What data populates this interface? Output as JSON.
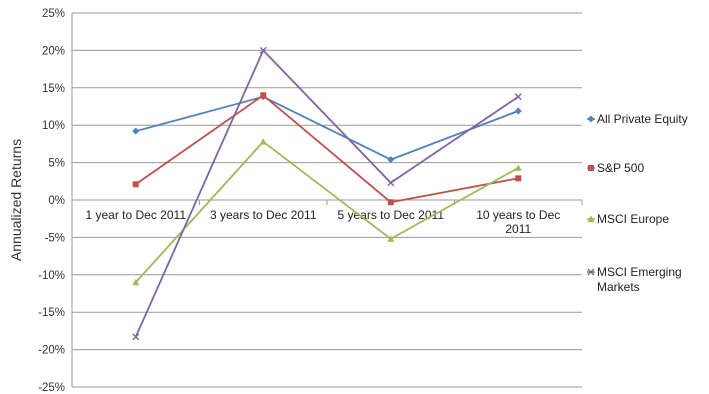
{
  "chart_data": {
    "type": "line",
    "ylabel": "Annualized Returns",
    "ylim": [
      -25,
      25
    ],
    "yticks": [
      25,
      20,
      15,
      10,
      5,
      0,
      -5,
      -10,
      -15,
      -20,
      -25
    ],
    "ytick_labels": [
      "25%",
      "20%",
      "15%",
      "10%",
      "5%",
      "0%",
      "-5%",
      "-10%",
      "-15%",
      "-20%",
      "-25%"
    ],
    "categories": [
      "1 year to Dec 2011",
      "3 years to Dec 2011",
      "5 years to Dec 2011",
      "10 years to Dec 2011"
    ],
    "grid": true,
    "legend": "right",
    "series": [
      {
        "name": "All Private Equity",
        "values": [
          9.2,
          13.8,
          5.4,
          11.9
        ],
        "color": "#4F81BD",
        "marker": "diamond"
      },
      {
        "name": "S&P 500",
        "values": [
          2.1,
          14.0,
          -0.3,
          2.9
        ],
        "color": "#C0504D",
        "marker": "square"
      },
      {
        "name": "MSCI Europe",
        "values": [
          -11.0,
          7.8,
          -5.2,
          4.3
        ],
        "color": "#9BBB59",
        "marker": "triangle"
      },
      {
        "name": "MSCI Emerging Markets",
        "values": [
          -18.3,
          20.0,
          2.3,
          13.8
        ],
        "color": "#8064A2",
        "marker": "x"
      }
    ]
  }
}
